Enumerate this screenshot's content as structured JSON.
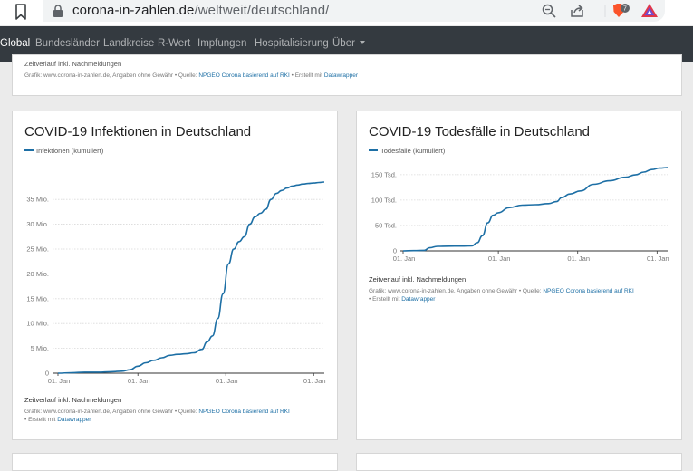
{
  "browser": {
    "url_domain": "corona-in-zahlen.de",
    "url_path": "/weltweit/deutschland/",
    "brave_badge": "7"
  },
  "nav": {
    "items": [
      "Global",
      "Bundesländer",
      "Landkreise",
      "R-Wert",
      "Impfungen",
      "Hospitalisierung",
      "Über"
    ],
    "active": "Global"
  },
  "top_card": {
    "note": "Zeitverlauf inkl. Nachmeldungen",
    "source_prefix": "Grafik: www.corona-in-zahlen.de, Angaben ohne Gewähr • Quelle:",
    "source_link": "NPGEO Corona basierend auf RKI",
    "made_with_prefix": "• Erstellt mit",
    "made_with_link": "Datawrapper"
  },
  "infections_card": {
    "title": "COVID-19 Infektionen in Deutschland",
    "legend": "Infektionen (kumuliert)",
    "note": "Zeitverlauf inkl. Nachmeldungen",
    "source_prefix": "Grafik: www.corona-in-zahlen.de, Angaben ohne Gewähr • Quelle:",
    "source_link": "NPGEO Corona basierend auf RKI",
    "made_with_prefix": "• Erstellt mit",
    "made_with_link": "Datawrapper"
  },
  "deaths_card": {
    "title": "COVID-19 Todesfälle in Deutschland",
    "legend": "Todesfälle (kumuliert)",
    "note": "Zeitverlauf inkl. Nachmeldungen",
    "source_prefix": "Grafik: www.corona-in-zahlen.de, Angaben ohne Gewähr • Quelle:",
    "source_link": "NPGEO Corona basierend auf RKI",
    "made_with_prefix": "• Erstellt mit",
    "made_with_link": "Datawrapper"
  },
  "colors": {
    "line": "#1d6fa5",
    "grid": "#d9d9d9",
    "nav_bg": "#343a40"
  },
  "chart_data": [
    {
      "type": "line",
      "title": "COVID-19 Infektionen in Deutschland",
      "series": [
        {
          "name": "Infektionen (kumuliert)",
          "t": [
            0,
            0.05,
            0.1,
            0.15,
            0.2,
            0.24,
            0.27,
            0.3,
            0.33,
            0.36,
            0.39,
            0.42,
            0.45,
            0.48,
            0.51,
            0.54,
            0.56,
            0.58,
            0.6,
            0.62,
            0.64,
            0.66,
            0.68,
            0.7,
            0.72,
            0.74,
            0.76,
            0.78,
            0.8,
            0.82,
            0.84,
            0.86,
            0.88,
            0.9,
            0.92,
            0.94,
            0.96,
            0.98,
            1.0
          ],
          "values": [
            0,
            0.1,
            0.2,
            0.2,
            0.3,
            0.4,
            0.7,
            1.4,
            2.1,
            2.6,
            3.1,
            3.6,
            3.8,
            3.9,
            4.1,
            4.8,
            6.3,
            7.5,
            11,
            16,
            22,
            25,
            26.5,
            27.5,
            30,
            31.5,
            32.2,
            33,
            35,
            36.2,
            36.8,
            37.3,
            37.7,
            37.9,
            38.1,
            38.2,
            38.3,
            38.4,
            38.5
          ]
        }
      ],
      "x_tick_labels": [
        "01. Jan",
        "01. Jan",
        "01. Jan",
        "01. Jan"
      ],
      "x_ticks_at": [
        0,
        0.3,
        0.63,
        0.96
      ],
      "y_ticks": [
        0,
        5,
        10,
        15,
        20,
        25,
        30,
        35
      ],
      "y_tick_labels": [
        "0",
        "5 Mio.",
        "10 Mio.",
        "15 Mio.",
        "20 Mio.",
        "25 Mio.",
        "30 Mio.",
        "35 Mio."
      ],
      "ylim": [
        0,
        38.5
      ]
    },
    {
      "type": "line",
      "title": "COVID-19 Todesfälle in Deutschland",
      "series": [
        {
          "name": "Todesfälle (kumuliert)",
          "t": [
            0,
            0.04,
            0.08,
            0.1,
            0.13,
            0.17,
            0.22,
            0.26,
            0.28,
            0.3,
            0.32,
            0.34,
            0.36,
            0.4,
            0.45,
            0.5,
            0.55,
            0.58,
            0.6,
            0.63,
            0.67,
            0.72,
            0.78,
            0.84,
            0.88,
            0.91,
            0.94,
            0.97,
            1.0
          ],
          "values": [
            0,
            0.5,
            1,
            6,
            9,
            9.2,
            9.5,
            10,
            16,
            30,
            55,
            70,
            75,
            85,
            90,
            91,
            93,
            97,
            105,
            112,
            118,
            131,
            138,
            145,
            150,
            155,
            160,
            163,
            164
          ]
        }
      ],
      "x_tick_labels": [
        "01. Jan",
        "01. Jan",
        "01. Jan",
        "01. Jan"
      ],
      "x_ticks_at": [
        0,
        0.36,
        0.66,
        0.96
      ],
      "y_ticks": [
        0,
        50,
        100,
        150
      ],
      "y_tick_labels": [
        "0",
        "50 Tsd.",
        "100 Tsd.",
        "150 Tsd."
      ],
      "ylim": [
        0,
        164
      ]
    }
  ]
}
